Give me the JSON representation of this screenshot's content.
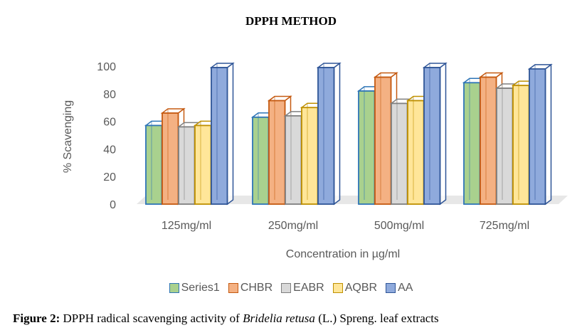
{
  "chart_data": {
    "type": "bar",
    "title": "DPPH METHOD",
    "xlabel": "Concentration in µg/ml",
    "ylabel": "% Scavenging",
    "ylim": [
      0,
      100
    ],
    "yticks": [
      0,
      20,
      40,
      60,
      80,
      100
    ],
    "categories": [
      "125mg/ml",
      "250mg/ml",
      "500mg/ml",
      "725mg/ml"
    ],
    "series": [
      {
        "name": "Series1",
        "color": "#A9D18E",
        "edge": "#2E75B6",
        "values": [
          57,
          63,
          82,
          88
        ]
      },
      {
        "name": "CHBR",
        "color": "#F4B183",
        "edge": "#C55A11",
        "values": [
          66,
          75,
          92,
          92
        ]
      },
      {
        "name": "EABR",
        "color": "#D9D9D9",
        "edge": "#7F7F7F",
        "values": [
          56,
          64,
          73,
          84
        ]
      },
      {
        "name": "AQBR",
        "color": "#FFE699",
        "edge": "#BF9000",
        "values": [
          57,
          70,
          75,
          86
        ]
      },
      {
        "name": "AA",
        "color": "#8FAADC",
        "edge": "#2F5597",
        "values": [
          99,
          99,
          99,
          98
        ]
      }
    ],
    "legend": "bottom",
    "style": "3d-column"
  },
  "caption": {
    "label": "Figure 2:",
    "text_before": " DPPH radical scavenging activity of ",
    "italic": "Bridelia retusa",
    "text_after": " (L.) Spreng. leaf extracts"
  }
}
